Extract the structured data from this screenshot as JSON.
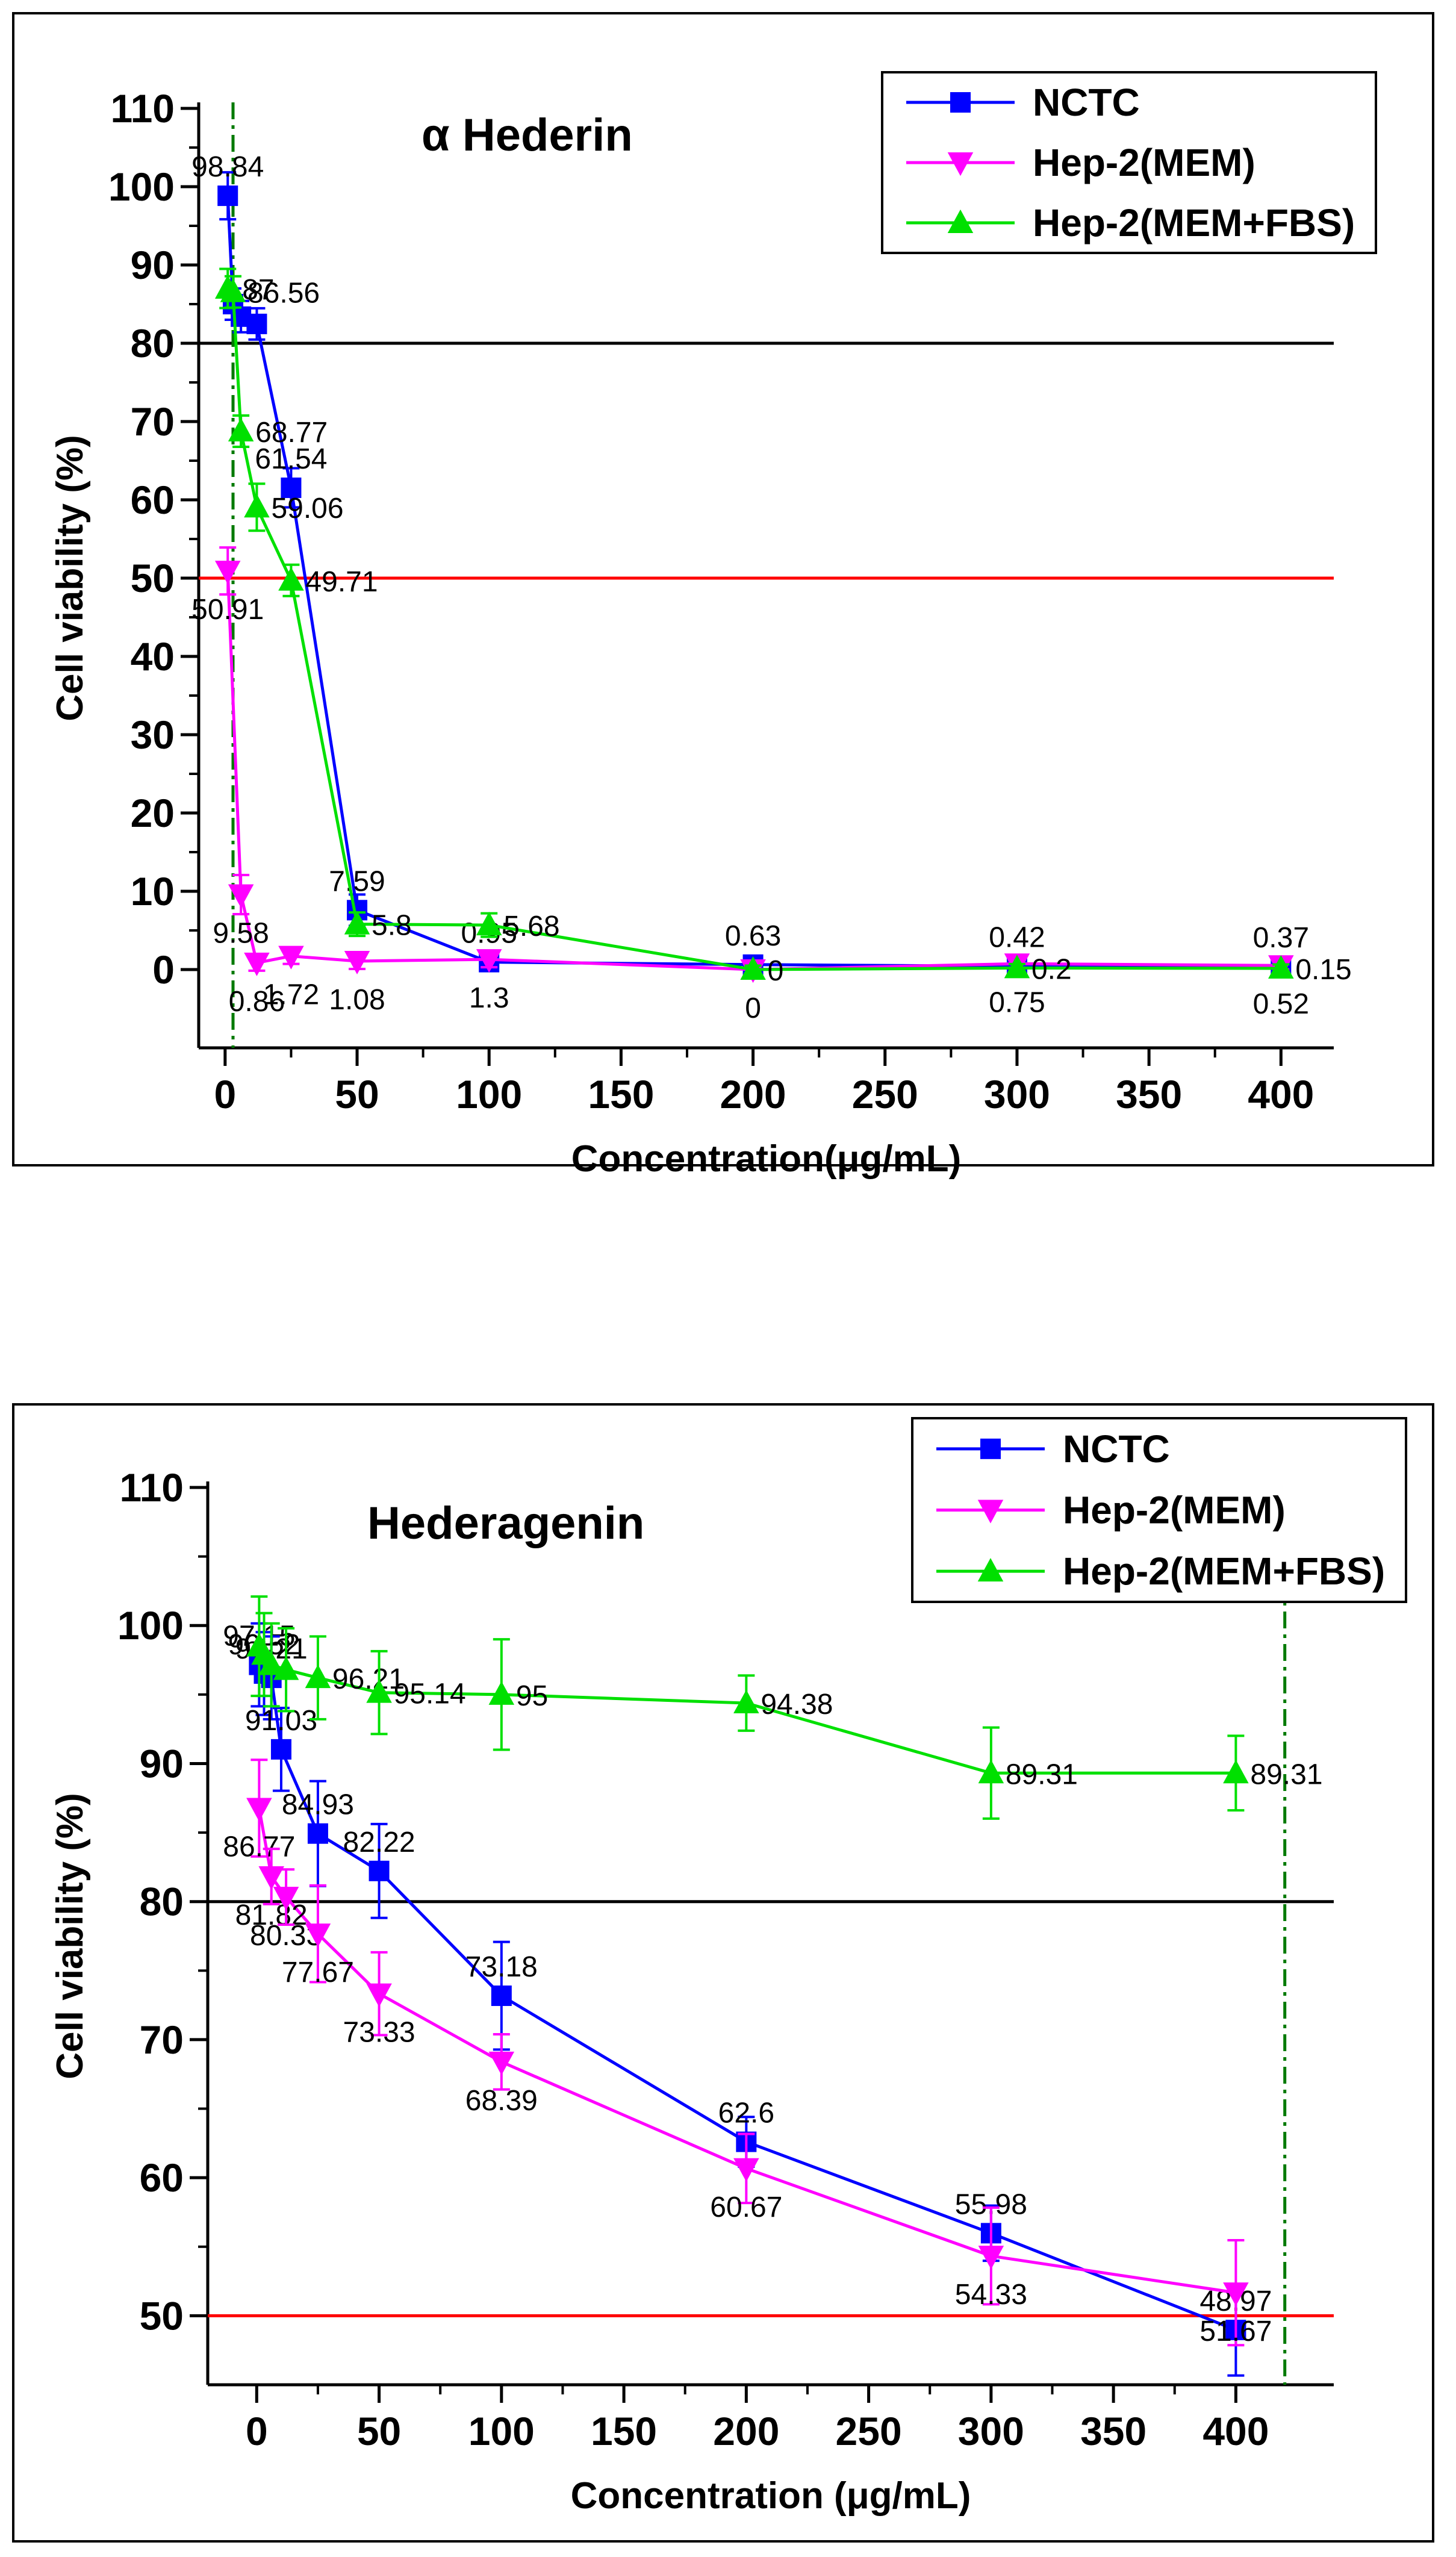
{
  "legend": {
    "labels": [
      "NCTC",
      "Hep-2(MEM)",
      "Hep-2(MEM+FBS)"
    ]
  },
  "colors": {
    "NCTC": "#0000ff",
    "Hep-2(MEM)": "#ff00ff",
    "Hep-2(MEM+FBS)": "#00e000",
    "ref80": "#000000",
    "ref50": "#ff0000",
    "vline": "#007a00"
  },
  "chart_data": [
    {
      "type": "line",
      "title": "α Hederin",
      "xlabel": "Concentration(μg/mL)",
      "ylabel": "Cell viability (%)",
      "xlim": [
        -10,
        420
      ],
      "ylim": [
        -10,
        110
      ],
      "xticks": [
        0,
        50,
        100,
        150,
        200,
        250,
        300,
        350,
        400
      ],
      "yticks": [
        0,
        10,
        20,
        30,
        40,
        50,
        60,
        70,
        80,
        90,
        100,
        110
      ],
      "reference_lines": [
        80,
        50
      ],
      "vertical_line_x": 3,
      "legend_position": "top-right",
      "series": [
        {
          "name": "NCTC",
          "marker": "square",
          "x": [
            1,
            3,
            6,
            12,
            25,
            50,
            100,
            200,
            300,
            400
          ],
          "y": [
            98.84,
            85,
            83.4,
            82.47,
            61.54,
            7.59,
            0.95,
            0.63,
            0.42,
            0.37
          ],
          "err": [
            3,
            2,
            2,
            2,
            2.5,
            2,
            1,
            0.5,
            0.5,
            0.5
          ],
          "labels": [
            "98.84",
            "",
            "",
            "",
            "61.54",
            "7.59",
            "0.95",
            "0.63",
            "0.42",
            "0.37"
          ]
        },
        {
          "name": "Hep-2(MEM)",
          "marker": "triangle-down",
          "x": [
            1,
            6,
            12,
            25,
            50,
            100,
            200,
            300,
            400
          ],
          "y": [
            50.91,
            9.58,
            0.86,
            1.72,
            1.08,
            1.3,
            0,
            0.75,
            0.52
          ],
          "err": [
            3,
            2.5,
            1,
            1,
            1,
            1,
            0.5,
            0.5,
            0.5
          ],
          "labels": [
            "50.91",
            "9.58",
            "0.86",
            "1.72",
            "1.08",
            "1.3",
            "0",
            "0.75",
            "0.52"
          ]
        },
        {
          "name": "Hep-2(MEM+FBS)",
          "marker": "triangle-up",
          "x": [
            1,
            3,
            6,
            12,
            25,
            50,
            100,
            200,
            300,
            400
          ],
          "y": [
            87,
            86.56,
            68.77,
            59.06,
            49.71,
            5.8,
            5.68,
            0,
            0.2,
            0.15
          ],
          "err": [
            2.5,
            2,
            2,
            3,
            2,
            1.5,
            1.5,
            0.5,
            0.5,
            0.5
          ],
          "labels": [
            "87",
            "86.56",
            "68.77",
            "59.06",
            "49.71",
            "5.8",
            "5.68",
            "0",
            "0.2",
            "0.15"
          ]
        }
      ]
    },
    {
      "type": "line",
      "title": "Hederagenin",
      "xlabel": "Concentration (μg/mL)",
      "ylabel": "Cell viability (%)",
      "xlim": [
        -20,
        440
      ],
      "ylim": [
        45,
        110
      ],
      "xticks": [
        0,
        50,
        100,
        150,
        200,
        250,
        300,
        350,
        400
      ],
      "yticks": [
        50,
        60,
        70,
        80,
        90,
        100,
        110
      ],
      "reference_lines": [
        80,
        50
      ],
      "vertical_line_x": 420,
      "legend_position": "top-right",
      "series": [
        {
          "name": "NCTC",
          "marker": "square",
          "x": [
            1,
            3,
            6,
            10,
            25,
            50,
            100,
            200,
            300,
            400
          ],
          "y": [
            97.15,
            96.52,
            96.21,
            91.03,
            84.93,
            82.22,
            73.18,
            62.6,
            55.98,
            48.97
          ],
          "err": [
            3,
            3,
            3,
            3,
            3.8,
            3.4,
            3.9,
            1.8,
            2,
            3.3
          ],
          "labels": [
            "97.15",
            "96.52",
            "96.21",
            "91.03",
            "84.93",
            "82.22",
            "73.18",
            "62.6",
            "55.98",
            "48.97"
          ]
        },
        {
          "name": "Hep-2(MEM)",
          "marker": "triangle-down",
          "x": [
            1,
            6,
            12,
            25,
            50,
            100,
            200,
            300,
            400
          ],
          "y": [
            86.77,
            81.82,
            80.33,
            77.67,
            73.33,
            68.39,
            60.67,
            54.33,
            51.67
          ],
          "err": [
            3.5,
            2,
            2,
            3.5,
            3,
            2,
            2.5,
            3.5,
            3.8
          ],
          "labels": [
            "86.77",
            "81.82",
            "80.33",
            "77.67",
            "73.33",
            "68.39",
            "60.67",
            "54.33",
            "51.67"
          ]
        },
        {
          "name": "Hep-2(MEM+FBS)",
          "marker": "triangle-up",
          "x": [
            1,
            3,
            6,
            12,
            25,
            50,
            100,
            200,
            300,
            400
          ],
          "y": [
            98.5,
            97.9,
            97.15,
            96.8,
            96.21,
            95.14,
            95,
            94.38,
            89.31,
            89.31
          ],
          "err": [
            3.6,
            3,
            3,
            3,
            3,
            3,
            4,
            2,
            3.3,
            2.7
          ],
          "labels": [
            "",
            "",
            "",
            "",
            "96.21",
            "95.14",
            "95",
            "94.38",
            "89.31",
            "89.31"
          ]
        }
      ]
    }
  ]
}
